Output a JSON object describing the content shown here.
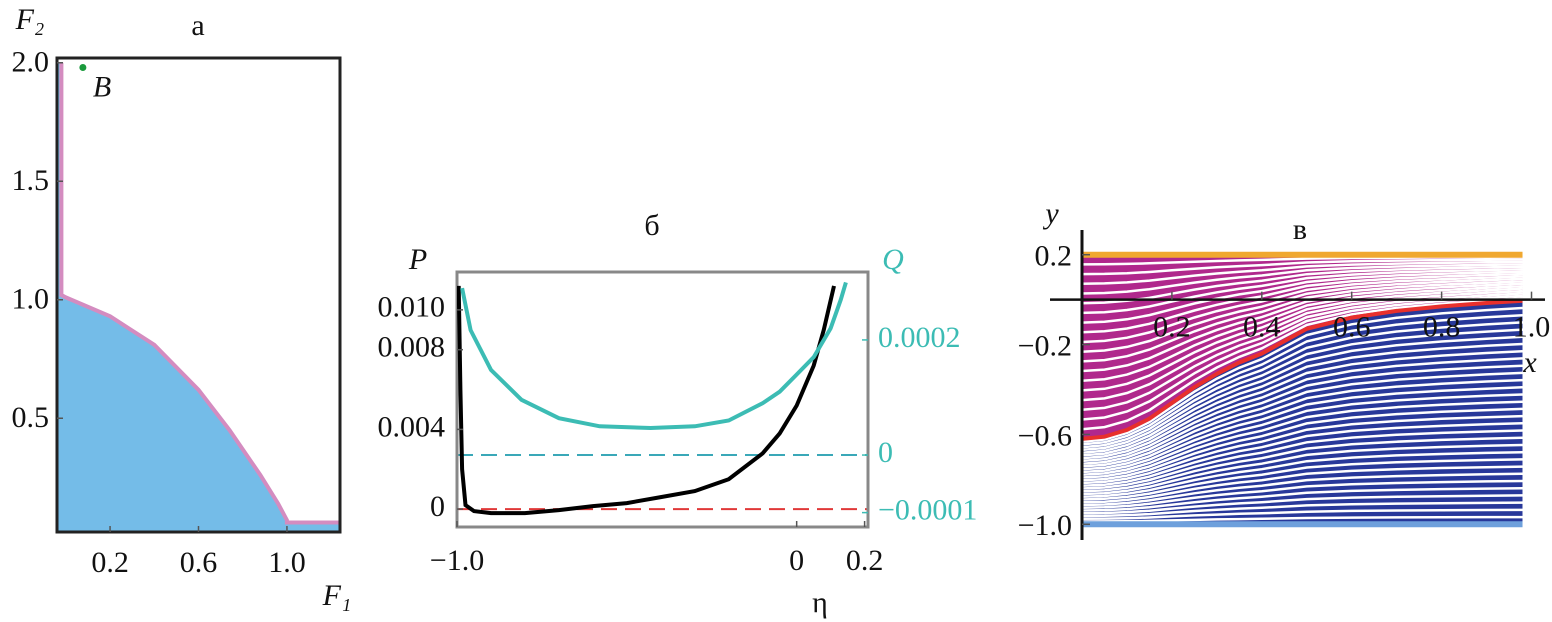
{
  "chart_data": [
    {
      "type": "region",
      "title": "а",
      "xlabel": "F₁",
      "ylabel": "F₂",
      "xlim": [
        -0.04,
        1.24
      ],
      "ylim": [
        0.02,
        2.02
      ],
      "xticks": [
        0.2,
        0.6,
        {
          "value": 1,
          "label": "1.0"
        }
      ],
      "yticks": [
        0.5,
        {
          "value": 1,
          "label": "1.0"
        },
        1.5,
        {
          "value": 2,
          "label": "2.0"
        }
      ],
      "fill": "#74bce8",
      "boundary": {
        "color": "#d48cc0",
        "x": [
          -0.02,
          -0.02,
          0,
          0.2,
          0.4,
          0.6,
          0.74,
          0.88,
          0.96,
          1.0,
          1.0,
          1.24
        ],
        "y": [
          2.0,
          1.02,
          1.01,
          0.93,
          0.81,
          0.62,
          0.45,
          0.26,
          0.14,
          0.07,
          0.06,
          0.06
        ]
      },
      "points": [
        {
          "label": "B",
          "x": 0.077,
          "y": 1.98,
          "color": "#1a9a3c"
        }
      ]
    },
    {
      "type": "line",
      "title": "б",
      "xlabel": "η",
      "ylabel": "P",
      "y2label": "Q",
      "y2color": "#3cbcb4",
      "xlim": [
        -1.0,
        0.21
      ],
      "ylim": [
        -0.0009,
        0.0119
      ],
      "y2lim": [
        -0.000125,
        0.000318
      ],
      "xticks": [
        {
          "value": -1,
          "label": "−1.0"
        },
        0,
        0.2
      ],
      "yticks": [
        0,
        0.004,
        0.008,
        {
          "value": 0.01,
          "label": "0.010"
        }
      ],
      "y2ticks": [
        {
          "value": -0.0001,
          "label": "−0.0001"
        },
        0,
        0.0002
      ],
      "series": [
        {
          "color": "#000000",
          "x": [
            -0.995,
            -0.99,
            -0.985,
            -0.975,
            -0.95,
            -0.9,
            -0.8,
            -0.7,
            -0.6,
            -0.5,
            -0.4,
            -0.3,
            -0.2,
            -0.1,
            -0.05,
            0,
            0.05,
            0.08,
            0.11
          ],
          "values": [
            0.0112,
            0.006,
            0.002,
            0.0002,
            -0.0001,
            -0.0002,
            -0.0002,
            -5e-05,
            0.00015,
            0.0003,
            0.0006,
            0.0009,
            0.0015,
            0.0028,
            0.0038,
            0.0052,
            0.0072,
            0.009,
            0.0112
          ]
        },
        {
          "color": "#3cbcb4",
          "axis": "y2",
          "x": [
            -0.985,
            -0.96,
            -0.9,
            -0.81,
            -0.7,
            -0.58,
            -0.43,
            -0.3,
            -0.2,
            -0.1,
            -0.05,
            0,
            0.05,
            0.1,
            0.13,
            0.145
          ],
          "values": [
            0.00029,
            0.000217,
            0.000148,
            9.6e-05,
            6.4e-05,
            5e-05,
            4.7e-05,
            5e-05,
            6e-05,
            9e-05,
            0.00011,
            0.00014,
            0.00017,
            0.00022,
            0.00027,
            0.0003
          ]
        }
      ],
      "hlines": [
        {
          "value": 0,
          "color": "#e03838"
        },
        {
          "value": 0,
          "axis": "y2",
          "color": "#3aa8b8"
        }
      ]
    },
    {
      "type": "flow",
      "title": "в",
      "xlabel": "x",
      "ylabel": "y",
      "xlim": [
        0,
        1.03
      ],
      "ylim": [
        -1.07,
        0.31
      ],
      "xticks": [
        0.2,
        0.4,
        0.6,
        0.8,
        {
          "value": 1,
          "label": "1.0"
        }
      ],
      "yticks": [
        0.2,
        {
          "value": -0.2,
          "label": "−0.2"
        },
        {
          "value": -0.6,
          "label": "−0.6"
        },
        {
          "value": -1,
          "label": "−1.0"
        }
      ],
      "interface": {
        "color": "#e8302c",
        "x": [
          0,
          0.05,
          0.1,
          0.15,
          0.2,
          0.25,
          0.3,
          0.35,
          0.4,
          0.5,
          0.6,
          0.7,
          0.8,
          0.9,
          0.98
        ],
        "y": [
          -0.62,
          -0.61,
          -0.58,
          -0.53,
          -0.46,
          -0.39,
          -0.33,
          -0.28,
          -0.24,
          -0.13,
          -0.08,
          -0.05,
          -0.03,
          -0.015,
          -0.005
        ]
      },
      "top": {
        "y": 0.2,
        "color": "#f0a830"
      },
      "bottom": {
        "y": -1,
        "color": "#6ea0dc"
      },
      "upper_color": "#b0288c",
      "lower_color": "#28389a",
      "upper_streamlines": 18,
      "lower_streamlines": 30
    }
  ]
}
